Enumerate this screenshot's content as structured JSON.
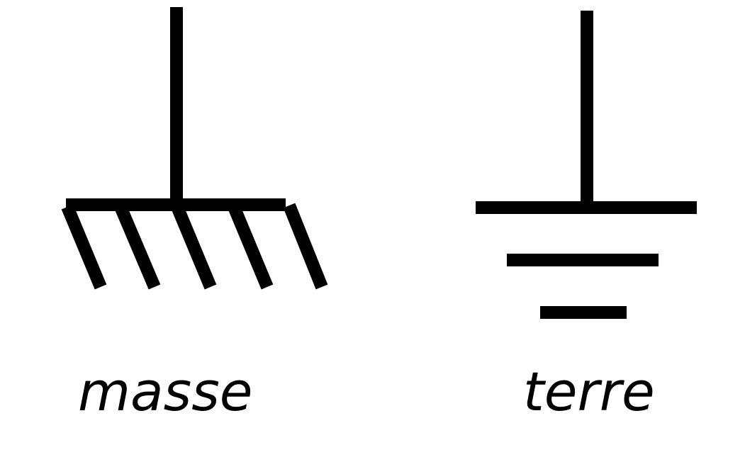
{
  "labels": {
    "chassis": "masse",
    "earth": "terre"
  },
  "symbols": {
    "chassis_icon": "chassis-ground-icon",
    "earth_icon": "earth-ground-icon"
  },
  "colors": {
    "stroke": "#000000",
    "background": "#ffffff"
  }
}
